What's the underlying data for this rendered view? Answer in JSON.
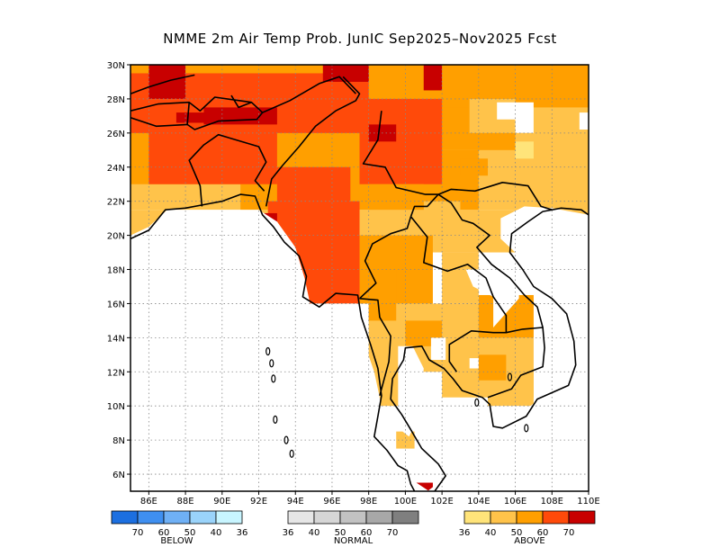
{
  "title": "NMME 2m Air Temp Prob. JunIC  Sep2025–Nov2025 Fcst",
  "map": {
    "lon_range": [
      85,
      110
    ],
    "lat_range": [
      5,
      30
    ],
    "lat_labels": [
      "6N",
      "8N",
      "10N",
      "12N",
      "14N",
      "16N",
      "18N",
      "20N",
      "22N",
      "24N",
      "26N",
      "28N",
      "30N"
    ],
    "lon_labels": [
      "86E",
      "88E",
      "90E",
      "92E",
      "94E",
      "96E",
      "98E",
      "100E",
      "102E",
      "104E",
      "106E",
      "108E",
      "110E"
    ],
    "grid": "dotted",
    "category_colors": {
      "above_40": "#ffe47a",
      "above_50": "#ffc34a",
      "above_60": "#ff9f00",
      "above_70": "#ff4a0a",
      "above_max": "#c80000"
    }
  },
  "legend": {
    "below": {
      "title": "BELOW",
      "labels": [
        "70",
        "60",
        "50",
        "40",
        "36"
      ],
      "colors": [
        "#1c6fe0",
        "#3f8ff0",
        "#6fb0f5",
        "#9ad3fa",
        "#c8f5ff"
      ]
    },
    "normal": {
      "title": "NORMAL",
      "labels": [
        "36",
        "40",
        "50",
        "60",
        "70"
      ],
      "colors": [
        "#e6e6e6",
        "#d6d6d6",
        "#c2c2c2",
        "#a8a8a8",
        "#7f7f7f"
      ]
    },
    "above": {
      "title": "ABOVE",
      "labels": [
        "36",
        "40",
        "50",
        "60",
        "70"
      ],
      "colors": [
        "#ffe47a",
        "#ffc34a",
        "#ff9f00",
        "#ff4a0a",
        "#c80000"
      ]
    }
  }
}
